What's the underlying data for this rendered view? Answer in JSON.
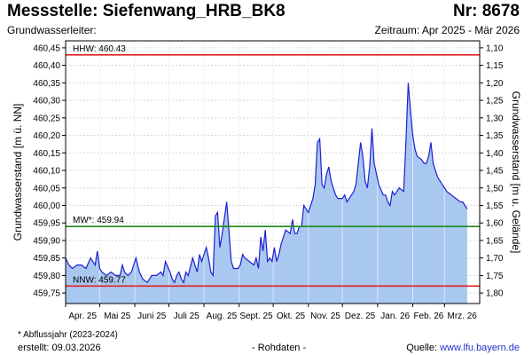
{
  "header": {
    "title": "Messstelle: Siefenwang_HRB_BK8",
    "number": "Nr: 8678",
    "aquifer": "Grundwasserleiter:",
    "period": "Zeitraum: Apr 2025 - Mär 2026"
  },
  "footer": {
    "footnote": "* Abflussjahr (2023-2024)",
    "created": "erstellt:  09.03.2026",
    "raw": "- Rohdaten -",
    "source_prefix": "Quelle: ",
    "source_link": "www.lfu.bayern.de"
  },
  "colors": {
    "fill": "#a9c8f0",
    "line": "#1f1fd0",
    "hhw": "#e02020",
    "mw": "#1a8a1a",
    "nnw": "#e02020",
    "grid": "#d8d8d8"
  },
  "chart_data": {
    "type": "area",
    "title": "Messstelle: Siefenwang_HRB_BK8",
    "ylabel_left": "Grundwasserstand [m ü. NN]",
    "ylabel_right": "Grundwasserstand [m u. Gelände]",
    "ylim": [
      459.72,
      460.47
    ],
    "yticks_left": [
      "460,45",
      "460,40",
      "460,35",
      "460,30",
      "460,25",
      "460,20",
      "460,15",
      "460,10",
      "460,05",
      "460,00",
      "459,95",
      "459,90",
      "459,85",
      "459,80",
      "459,75"
    ],
    "yticks_right": [
      "1,10",
      "1,15",
      "1,20",
      "1,25",
      "1,30",
      "1,35",
      "1,40",
      "1,45",
      "1,50",
      "1,55",
      "1,60",
      "1,65",
      "1,70",
      "1,75",
      "1,80"
    ],
    "right_axis_reference": 461.55,
    "xlim": [
      0,
      365
    ],
    "xticks": [
      "Apr. 25",
      "Mai 25",
      "Juni 25",
      "Juli 25",
      "Aug. 25",
      "Sept. 25",
      "Okt. 25",
      "Nov. 25",
      "Dez. 25",
      "Jan. 26",
      "Feb. 26",
      "Mrz. 26"
    ],
    "grid": true,
    "reference_lines": [
      {
        "name": "HHW",
        "label": "HHW: 460.43",
        "value": 460.43,
        "color": "#e02020"
      },
      {
        "name": "MW*",
        "label": "MW*: 459.94",
        "value": 459.94,
        "color": "#1a8a1a"
      },
      {
        "name": "NNW",
        "label": "NNW: 459.77",
        "value": 459.77,
        "color": "#e02020"
      }
    ],
    "series": [
      {
        "x": [
          0,
          3,
          6,
          10,
          14,
          18,
          22,
          26,
          28,
          30,
          32,
          36,
          40,
          44,
          48,
          50,
          52,
          55,
          58,
          62,
          65,
          68,
          72,
          76,
          80,
          84,
          86,
          88,
          92,
          94,
          96,
          98,
          100,
          102,
          104,
          106,
          108,
          112,
          116,
          118,
          120,
          122,
          124,
          126,
          128,
          130,
          132,
          134,
          136,
          138,
          142,
          146,
          148,
          150,
          152,
          154,
          156,
          158,
          162,
          166,
          168,
          170,
          172,
          174,
          176,
          178,
          180,
          182,
          184,
          186,
          188,
          190,
          194,
          198,
          200,
          202,
          204,
          206,
          208,
          210,
          214,
          218,
          220,
          222,
          224,
          226,
          228,
          230,
          232,
          234,
          238,
          240,
          242,
          244,
          246,
          248,
          250,
          254,
          256,
          258,
          260,
          262,
          264,
          266,
          268,
          270,
          272,
          274,
          276,
          280,
          282,
          284,
          286,
          288,
          290,
          294,
          298,
          300,
          302,
          304,
          306,
          308,
          310,
          314,
          316,
          318,
          320,
          322,
          324,
          328,
          332,
          336,
          340,
          344,
          348,
          350,
          352,
          354
        ],
        "values": [
          459.85,
          459.83,
          459.82,
          459.83,
          459.83,
          459.82,
          459.85,
          459.83,
          459.87,
          459.82,
          459.81,
          459.8,
          459.81,
          459.8,
          459.8,
          459.83,
          459.81,
          459.8,
          459.81,
          459.85,
          459.81,
          459.79,
          459.78,
          459.8,
          459.8,
          459.81,
          459.8,
          459.84,
          459.81,
          459.79,
          459.78,
          459.8,
          459.81,
          459.79,
          459.78,
          459.81,
          459.8,
          459.85,
          459.81,
          459.86,
          459.84,
          459.86,
          459.88,
          459.85,
          459.81,
          459.8,
          459.97,
          459.98,
          459.88,
          459.92,
          460.01,
          459.84,
          459.82,
          459.82,
          459.82,
          459.83,
          459.86,
          459.85,
          459.84,
          459.83,
          459.85,
          459.82,
          459.91,
          459.87,
          459.93,
          459.84,
          459.85,
          459.84,
          459.88,
          459.84,
          459.86,
          459.89,
          459.93,
          459.92,
          459.96,
          459.92,
          459.92,
          459.94,
          459.94,
          460.0,
          459.98,
          460.02,
          460.06,
          460.18,
          460.19,
          460.06,
          460.05,
          460.09,
          460.11,
          460.07,
          460.03,
          460.02,
          460.02,
          460.02,
          460.03,
          460.01,
          460.02,
          460.04,
          460.06,
          460.12,
          460.18,
          460.14,
          460.07,
          460.05,
          460.11,
          460.22,
          460.12,
          460.09,
          460.06,
          460.03,
          460.03,
          460.01,
          460.0,
          460.04,
          460.03,
          460.05,
          460.04,
          460.18,
          460.35,
          460.27,
          460.2,
          460.16,
          460.14,
          460.13,
          460.12,
          460.12,
          460.14,
          460.18,
          460.12,
          460.08,
          460.06,
          460.04,
          460.03,
          460.02,
          460.01,
          460.01,
          460.0,
          459.99
        ]
      }
    ]
  }
}
